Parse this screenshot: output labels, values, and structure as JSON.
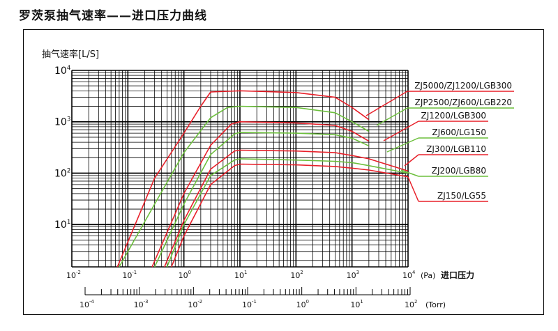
{
  "page": {
    "title": "罗茨泵抽气速率——进口压力曲线"
  },
  "colors": {
    "red": "#e8202a",
    "green": "#6cbf3c",
    "grid": "#000000"
  },
  "chart_data": {
    "type": "line",
    "ylabel": "抽气速率[L/S]",
    "x_scale": "log",
    "y_scale": "log",
    "xlim": [
      0.01,
      10000
    ],
    "ylim": [
      1.5,
      10000
    ],
    "x_ticks": [
      {
        "value": 0.01,
        "base": "10",
        "exp": "-2"
      },
      {
        "value": 0.1,
        "base": "10",
        "exp": "-1"
      },
      {
        "value": 1,
        "base": "10",
        "exp": "0"
      },
      {
        "value": 10,
        "base": "10",
        "exp": "1"
      },
      {
        "value": 100,
        "base": "10",
        "exp": "2"
      },
      {
        "value": 1000,
        "base": "10",
        "exp": "3"
      },
      {
        "value": 10000,
        "base": "10",
        "exp": "4"
      }
    ],
    "x_unit": "(Pa)",
    "x_label": "进口压力",
    "y_ticks": [
      {
        "value": 10,
        "base": "10",
        "exp": "1"
      },
      {
        "value": 100,
        "base": "10",
        "exp": "2"
      },
      {
        "value": 1000,
        "base": "10",
        "exp": "3"
      },
      {
        "value": 10000,
        "base": "10",
        "exp": "4"
      }
    ],
    "secondary_x_axis": {
      "unit": "(Torr)",
      "ticks": [
        {
          "value": 0.0001,
          "base": "10",
          "exp": "-4"
        },
        {
          "value": 0.001,
          "base": "10",
          "exp": "-3"
        },
        {
          "value": 0.01,
          "base": "10",
          "exp": "-2"
        },
        {
          "value": 0.1,
          "base": "10",
          "exp": "-1"
        },
        {
          "value": 1,
          "base": "10",
          "exp": "0"
        },
        {
          "value": 10,
          "base": "10",
          "exp": "1"
        },
        {
          "value": 100,
          "base": "10",
          "exp": "2"
        }
      ]
    },
    "series": [
      {
        "name": "ZJ5000/ZJ1200/LGB300",
        "color": "red",
        "x": [
          0.065,
          0.3,
          1,
          2,
          3,
          10,
          100,
          500,
          1000,
          2000
        ],
        "y": [
          1.5,
          80,
          600,
          2000,
          3800,
          4000,
          3700,
          3000,
          1900,
          1100
        ]
      },
      {
        "name": "ZJP2500/ZJ600/LGB220",
        "color": "green",
        "x": [
          0.07,
          0.3,
          1,
          3,
          6,
          10,
          100,
          500,
          1000,
          2000
        ],
        "y": [
          1.5,
          25,
          250,
          1200,
          1900,
          2000,
          1900,
          1500,
          1000,
          650
        ]
      },
      {
        "name": "ZJ1200/LGB300",
        "color": "red",
        "x": [
          0.27,
          1,
          3,
          7,
          10,
          100,
          500,
          1000,
          2000
        ],
        "y": [
          1.5,
          40,
          350,
          900,
          1000,
          950,
          850,
          650,
          420
        ]
      },
      {
        "name": "ZJ600/LG150",
        "color": "green",
        "x": [
          0.3,
          1,
          3,
          8,
          10,
          100,
          500,
          1000,
          2000
        ],
        "y": [
          1.5,
          25,
          230,
          580,
          620,
          600,
          560,
          480,
          340
        ]
      },
      {
        "name": "ZJ300/LGB110",
        "color": "red",
        "x": [
          0.45,
          1,
          3,
          8,
          10,
          100,
          500,
          1000,
          2000,
          10000
        ],
        "y": [
          1.5,
          12,
          120,
          270,
          280,
          270,
          250,
          220,
          190,
          110
        ]
      },
      {
        "name": "ZJ200/LGB80",
        "color": "green",
        "x": [
          0.5,
          1,
          3,
          8,
          10,
          100,
          500,
          1000,
          2000,
          10000
        ],
        "y": [
          1.5,
          10,
          90,
          180,
          190,
          180,
          170,
          160,
          140,
          100
        ]
      },
      {
        "name": "ZJ150/LG55",
        "color": "red",
        "x": [
          0.6,
          1,
          3,
          8,
          10,
          100,
          500,
          1000,
          2000,
          10000
        ],
        "y": [
          1.5,
          6,
          60,
          140,
          150,
          145,
          135,
          125,
          115,
          85
        ]
      }
    ]
  }
}
